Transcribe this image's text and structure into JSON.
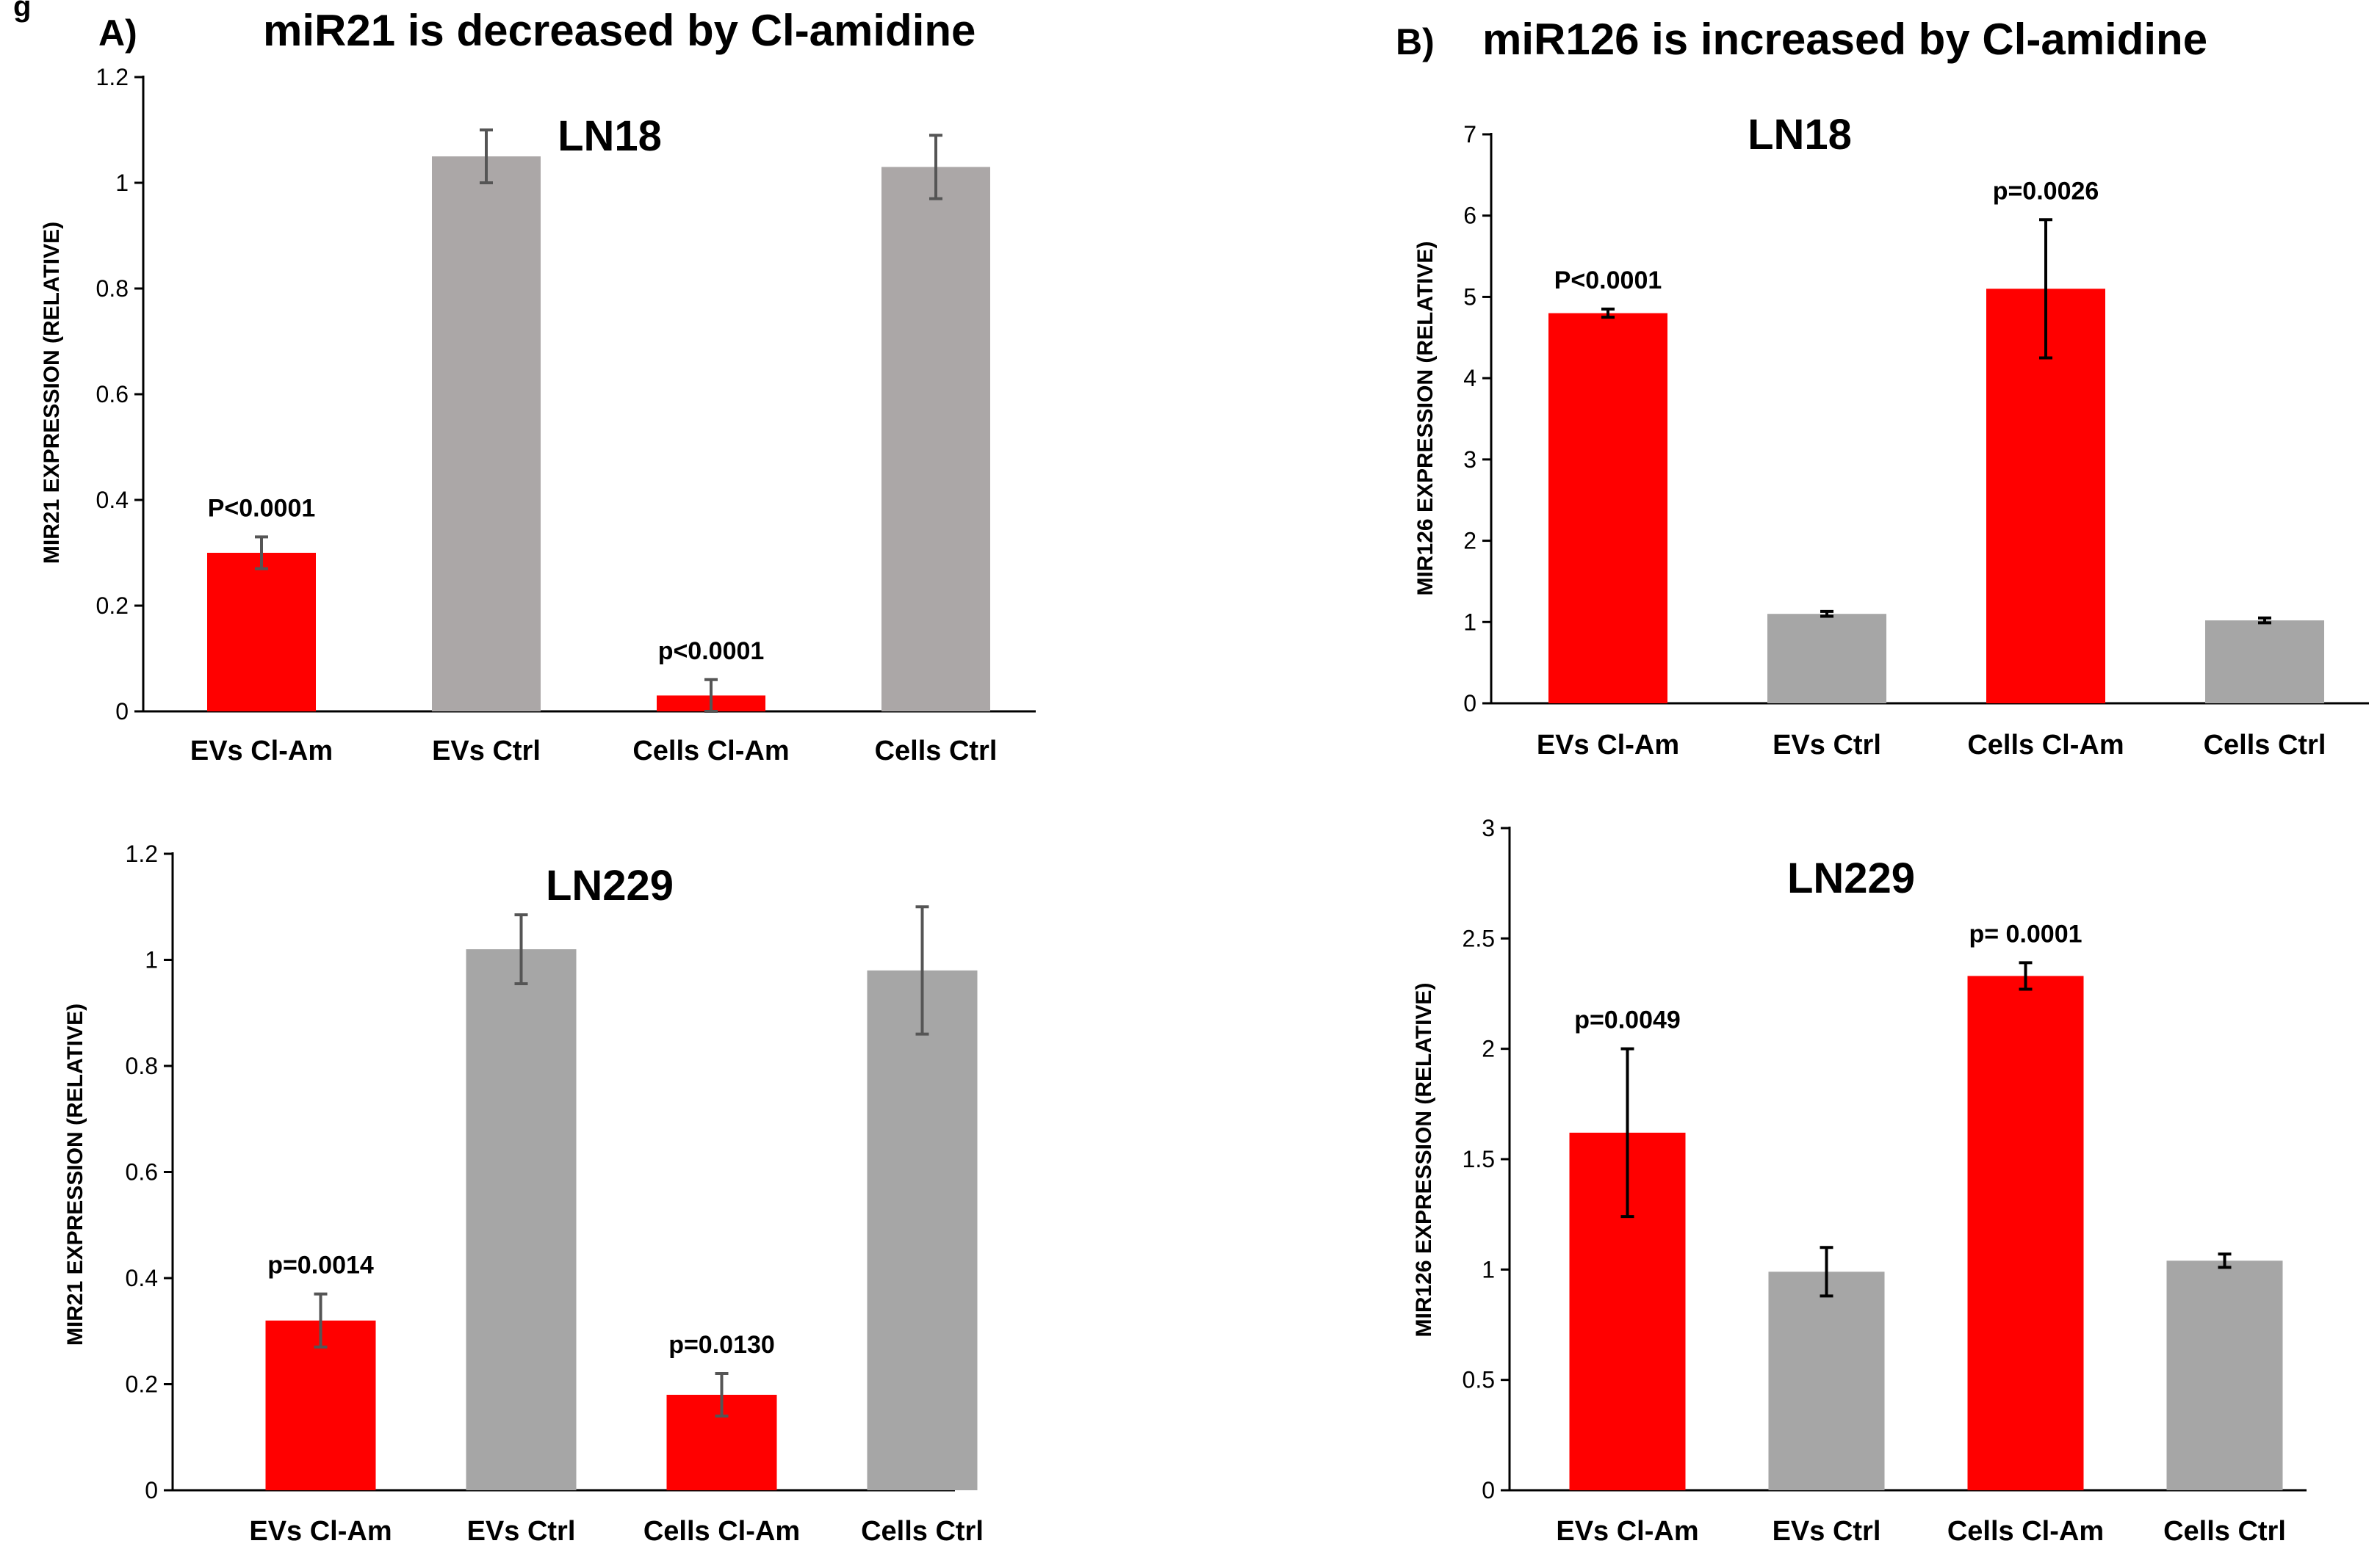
{
  "figure": {
    "corner_mark": "g",
    "panel_a": {
      "letter": "A)",
      "title": "miR21 is decreased by Cl-amidine"
    },
    "panel_b": {
      "letter": "B)",
      "title": "miR126 is increased by Cl-amidine"
    }
  },
  "colors": {
    "treated": "#ff0000",
    "control_a": "#aba7a7",
    "control_b": "#a6a6a6",
    "error_a": "#555555",
    "error_b": "#000000"
  },
  "chart_data": [
    {
      "id": "a_ln18",
      "type": "bar",
      "title": "LN18",
      "ylabel": "MIR21 EXPRESSION (RELATIVE)",
      "ylim": [
        0,
        1.2
      ],
      "yticks": [
        0,
        0.2,
        0.4,
        0.6,
        0.8,
        1,
        1.2
      ],
      "ytick_labels": [
        "0",
        "0.2",
        "0.4",
        "0.6",
        "0.8",
        "1",
        "1.2"
      ],
      "categories": [
        "EVs Cl-Am",
        "EVs Ctrl",
        "Cells Cl-Am",
        "Cells Ctrl"
      ],
      "values": [
        0.3,
        1.05,
        0.03,
        1.03
      ],
      "errors": [
        0.03,
        0.05,
        0.03,
        0.06
      ],
      "bar_colors": [
        "#ff0000",
        "#aba7a7",
        "#ff0000",
        "#aba7a7"
      ],
      "annotations": [
        "P<0.0001",
        "",
        "p<0.0001",
        ""
      ],
      "error_color": "#555555"
    },
    {
      "id": "b_ln18",
      "type": "bar",
      "title": "LN18",
      "ylabel": "MIR126 EXPRESSION (RELATIVE)",
      "ylim": [
        0,
        7
      ],
      "yticks": [
        0,
        1,
        2,
        3,
        4,
        5,
        6,
        7
      ],
      "ytick_labels": [
        "0",
        "1",
        "2",
        "3",
        "4",
        "5",
        "6",
        "7"
      ],
      "categories": [
        "EVs Cl-Am",
        "EVs Ctrl",
        "Cells Cl-Am",
        "Cells Ctrl"
      ],
      "values": [
        4.8,
        1.1,
        5.1,
        1.02
      ],
      "errors": [
        0.05,
        0.03,
        0.85,
        0.03
      ],
      "bar_colors": [
        "#ff0000",
        "#a6a6a6",
        "#ff0000",
        "#a6a6a6"
      ],
      "annotations": [
        "P<0.0001",
        "",
        "p=0.0026",
        ""
      ],
      "error_color": "#000000"
    },
    {
      "id": "a_ln229",
      "type": "bar",
      "title": "LN229",
      "ylabel": "MIR21 EXPRESSION (RELATIVE)",
      "ylim": [
        0,
        1.2
      ],
      "yticks": [
        0,
        0.2,
        0.4,
        0.6,
        0.8,
        1,
        1.2
      ],
      "ytick_labels": [
        "0",
        "0.2",
        "0.4",
        "0.6",
        "0.8",
        "1",
        "1.2"
      ],
      "categories": [
        "EVs Cl-Am",
        "EVs Ctrl",
        "Cells Cl-Am",
        "Cells Ctrl"
      ],
      "values": [
        0.32,
        1.02,
        0.18,
        0.98
      ],
      "errors": [
        0.05,
        0.065,
        0.04,
        0.12
      ],
      "bar_colors": [
        "#ff0000",
        "#a6a6a6",
        "#ff0000",
        "#a6a6a6"
      ],
      "annotations": [
        "p=0.0014",
        "",
        "p=0.0130",
        ""
      ],
      "error_color": "#555555"
    },
    {
      "id": "b_ln229",
      "type": "bar",
      "title": "LN229",
      "ylabel": "MIR126 EXPRESSION (RELATIVE)",
      "ylim": [
        0,
        3
      ],
      "yticks": [
        0,
        0.5,
        1,
        1.5,
        2,
        2.5,
        3
      ],
      "ytick_labels": [
        "0",
        "0.5",
        "1",
        "1.5",
        "2",
        "2.5",
        "3"
      ],
      "categories": [
        "EVs Cl-Am",
        "EVs Ctrl",
        "Cells Cl-Am",
        "Cells Ctrl"
      ],
      "values": [
        1.62,
        0.99,
        2.33,
        1.04
      ],
      "errors": [
        0.38,
        0.11,
        0.06,
        0.03
      ],
      "bar_colors": [
        "#ff0000",
        "#a6a6a6",
        "#ff0000",
        "#a6a6a6"
      ],
      "annotations": [
        "p=0.0049",
        "",
        "p= 0.0001",
        ""
      ],
      "error_color": "#000000"
    }
  ]
}
